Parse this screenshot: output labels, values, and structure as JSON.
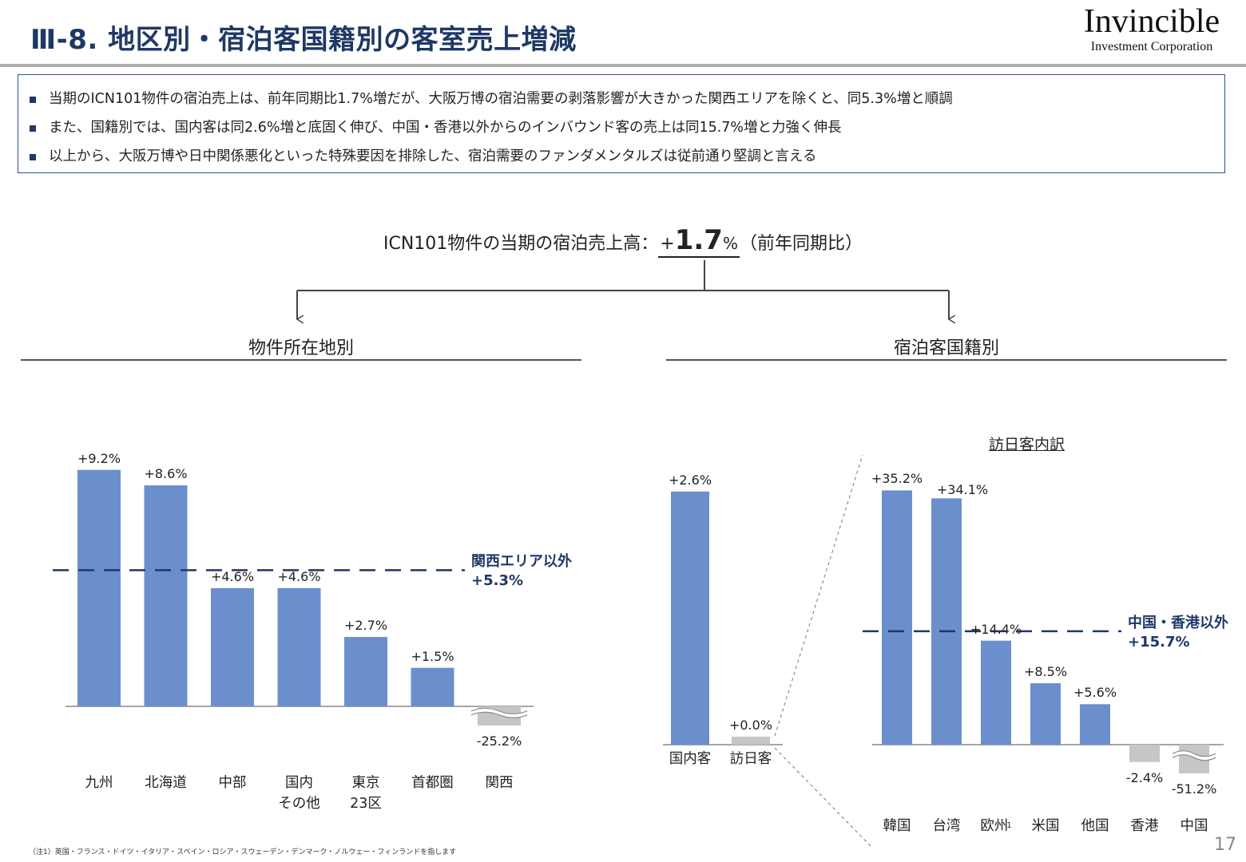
{
  "header": {
    "title": "Ⅲ-8. 地区別・宿泊客国籍別の客室売上増減",
    "logo_name": "Invincible",
    "logo_sub": "Investment Corporation"
  },
  "summary": [
    "当期のICN101物件の宿泊売上は、前年同期比1.7%増だが、大阪万博の宿泊需要の剥落影響が大きかった関西エリアを除くと、同5.3%増と順調",
    "また、国籍別では、国内客は同2.6%増と底固く伸び、中国・香港以外からのインバウンド客の売上は同15.7%増と力強く伸長",
    "以上から、大阪万博や日中関係悪化といった特殊要因を排除した、宿泊需要のファンダメンタルズは従前通り堅調と言える"
  ],
  "headline": {
    "prefix": "ICN101物件の当期の宿泊売上高：",
    "sign": "+",
    "value": "1.7",
    "pct": "%",
    "suffix": "（前年同期比）"
  },
  "sections": {
    "left_title": "物件所在地別",
    "right_title": "宿泊客国籍別",
    "inbound_breakdown": "訪日客内訳"
  },
  "colors": {
    "bar": "#6a8fcc",
    "bar_gray": "#c6c6c6",
    "ref_line": "#1f3864",
    "text_accent": "#1f3864"
  },
  "chart_data": [
    {
      "type": "bar",
      "categories": [
        "九州",
        "北海道",
        "中部",
        "国内\nその他",
        "東京\n23区",
        "首都圏",
        "関西"
      ],
      "values": [
        9.2,
        8.6,
        4.6,
        4.6,
        2.7,
        1.5,
        -25.2
      ],
      "labels": [
        "+9.2%",
        "+8.6%",
        "+4.6%",
        "+4.6%",
        "+2.7%",
        "+1.5%",
        "-25.2%"
      ],
      "axis_break_categories": [
        "関西"
      ],
      "reference_line": {
        "value": 5.3,
        "label_line1": "関西エリア以外",
        "label_line2": "+5.3%"
      }
    },
    {
      "type": "bar",
      "categories": [
        "国内客",
        "訪日客"
      ],
      "values": [
        2.6,
        0.0
      ],
      "labels": [
        "+2.6%",
        "+0.0%"
      ]
    },
    {
      "type": "bar",
      "title": "訪日客内訳",
      "categories": [
        "韓国",
        "台湾",
        "欧州",
        "米国",
        "他国",
        "香港",
        "中国"
      ],
      "category_notes": {
        "欧州": "1"
      },
      "values": [
        35.2,
        34.1,
        14.4,
        8.5,
        5.6,
        -2.4,
        -51.2
      ],
      "labels": [
        "+35.2%",
        "+34.1%",
        "+14.4%",
        "+8.5%",
        "+5.6%",
        "-2.4%",
        "-51.2%"
      ],
      "axis_break_categories": [
        "中国"
      ],
      "reference_line": {
        "value": 15.7,
        "label_line1": "中国・香港以外",
        "label_line2": "+15.7%"
      }
    }
  ],
  "footnote": "（注1）英国・フランス・ドイツ・イタリア・スペイン・ロシア・スウェーデン・デンマーク・ノルウェー・フィンランドを指します",
  "page_number": "17"
}
